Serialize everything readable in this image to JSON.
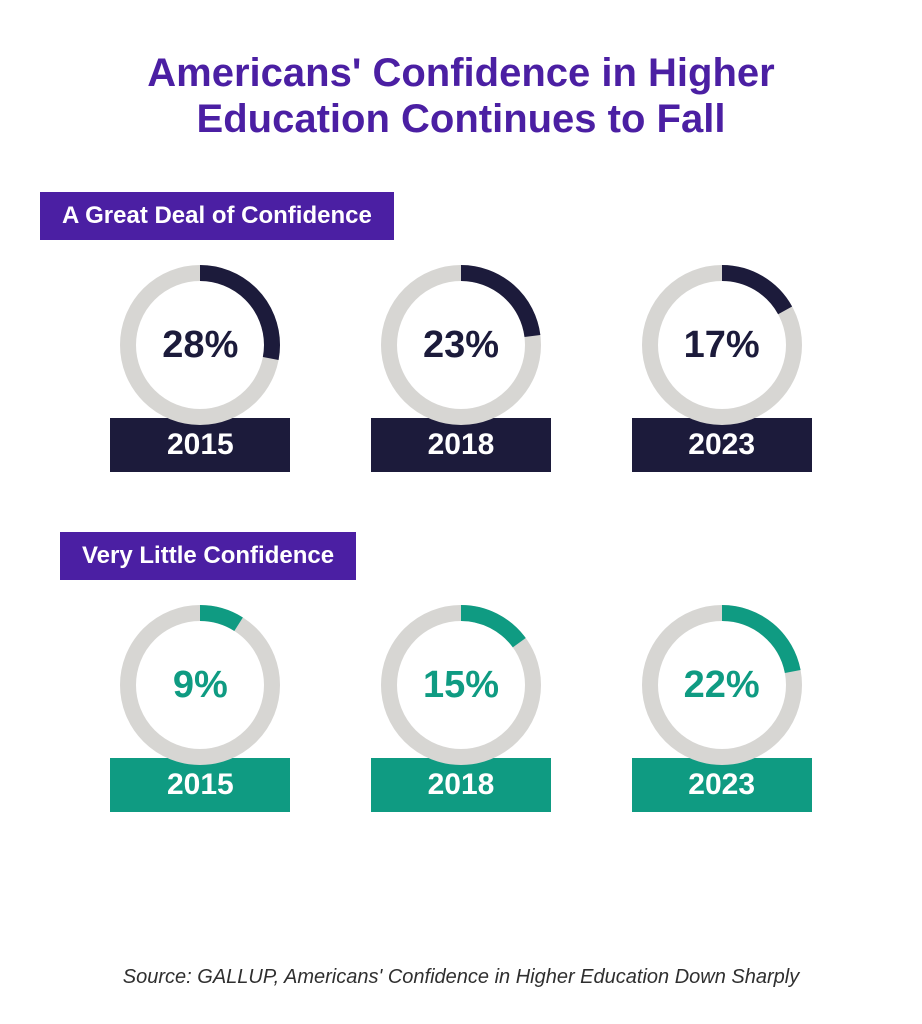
{
  "title": {
    "text": "Americans' Confidence in Higher Education Continues to Fall",
    "color": "#4b1fa3",
    "fontsize": 40
  },
  "background_color": "#ffffff",
  "sections": [
    {
      "label": "A Great Deal of Confidence",
      "label_bg": "#4b1fa3",
      "label_color": "#ffffff",
      "label_fontsize": 24,
      "donut": {
        "track_color": "#d7d6d3",
        "arc_color": "#1c1b3b",
        "stroke_width": 16,
        "radius": 72
      },
      "pct_text_color": "#1c1b3b",
      "pct_fontsize": 38,
      "year_bg": "#1c1b3b",
      "year_color": "#ffffff",
      "year_fontsize": 30,
      "items": [
        {
          "percent": 28,
          "pct_label": "28%",
          "year": "2015"
        },
        {
          "percent": 23,
          "pct_label": "23%",
          "year": "2018"
        },
        {
          "percent": 17,
          "pct_label": "17%",
          "year": "2023"
        }
      ]
    },
    {
      "label": "Very Little Confidence",
      "label_bg": "#4b1fa3",
      "label_color": "#ffffff",
      "label_fontsize": 24,
      "donut": {
        "track_color": "#d7d6d3",
        "arc_color": "#0f9b82",
        "stroke_width": 16,
        "radius": 72
      },
      "pct_text_color": "#0f9b82",
      "pct_fontsize": 38,
      "year_bg": "#0f9b82",
      "year_color": "#ffffff",
      "year_fontsize": 30,
      "items": [
        {
          "percent": 9,
          "pct_label": "9%",
          "year": "2015"
        },
        {
          "percent": 15,
          "pct_label": "15%",
          "year": "2018"
        },
        {
          "percent": 22,
          "pct_label": "22%",
          "year": "2023"
        }
      ]
    }
  ],
  "source": {
    "text": "Source: GALLUP, Americans' Confidence in Higher Education Down Sharply",
    "color": "#2f2f2f",
    "fontsize": 20
  }
}
